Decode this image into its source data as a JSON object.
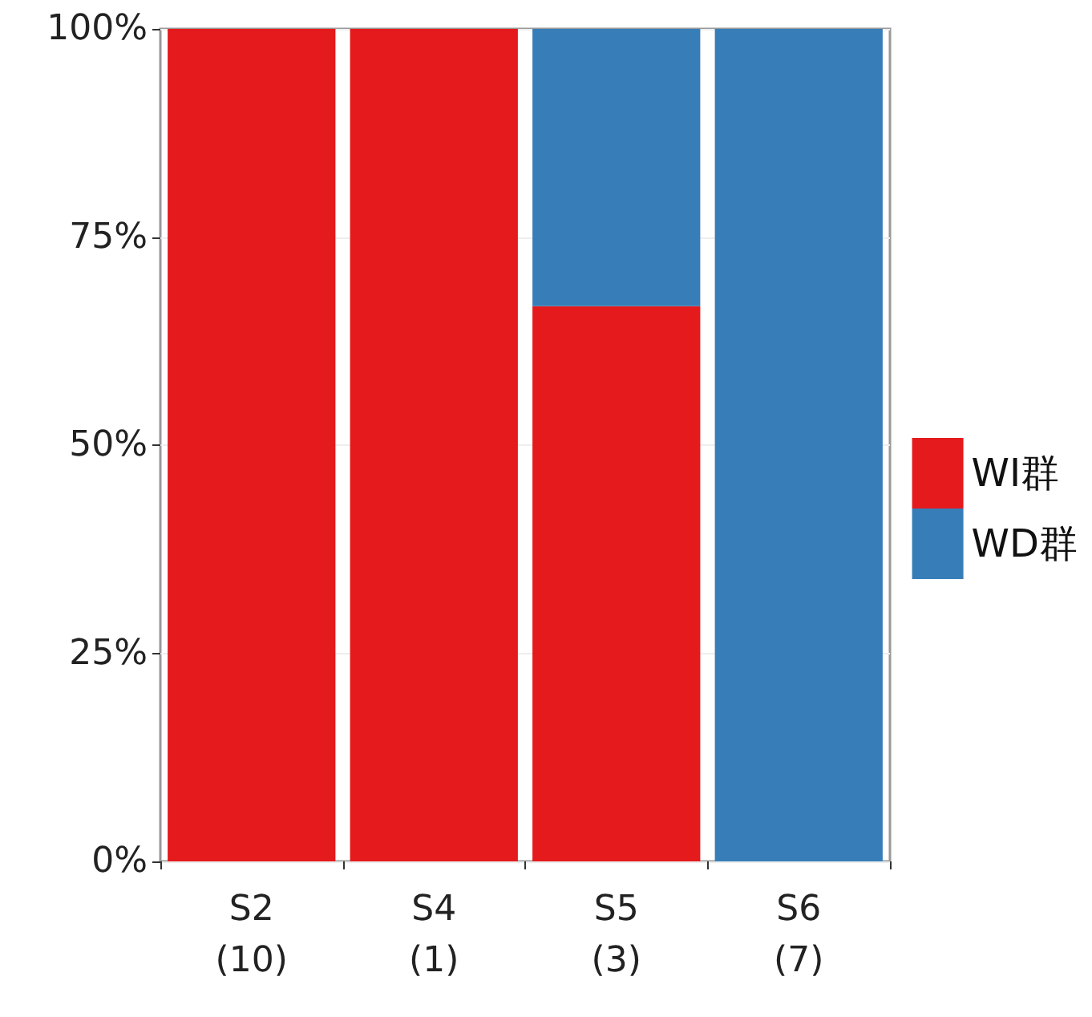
{
  "chart_data": {
    "type": "bar",
    "stacked": true,
    "categories": [
      "S2\n(10)",
      "S4\n(1)",
      "S5\n(3)",
      "S6\n(7)"
    ],
    "series": [
      {
        "name": "WI群",
        "color": "#e41a1c",
        "values": [
          100,
          100,
          66.7,
          0
        ]
      },
      {
        "name": "WD群",
        "color": "#377eb8",
        "values": [
          0,
          0,
          33.3,
          100
        ]
      }
    ],
    "ylim": [
      0,
      100
    ],
    "yticks": [
      {
        "value": 0,
        "label": "0%"
      },
      {
        "value": 25,
        "label": "25%"
      },
      {
        "value": 50,
        "label": "50%"
      },
      {
        "value": 75,
        "label": "75%"
      },
      {
        "value": 100,
        "label": "100%"
      }
    ],
    "grid": "y",
    "legend": "right"
  }
}
